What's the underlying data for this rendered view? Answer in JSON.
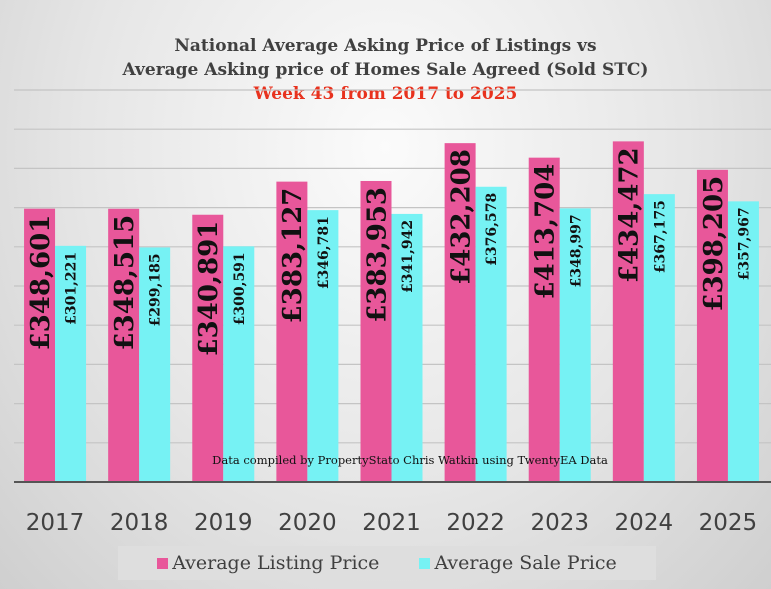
{
  "chart_data": {
    "type": "bar",
    "title": "National Average Asking Price of Listings vs",
    "title_line2": "Average Asking price of Homes Sale Agreed (Sold STC)",
    "subtitle": "Week 43 from 2017 to 2025",
    "annotation": "Data compiled by PropertyStato Chris Watkin using TwentyEA Data",
    "categories": [
      "2017",
      "2018",
      "2019",
      "2020",
      "2021",
      "2022",
      "2023",
      "2024",
      "2025"
    ],
    "series": [
      {
        "name": "Average Listing Price",
        "color": "#e8579a",
        "values": [
          348601,
          348515,
          340891,
          383127,
          383953,
          432208,
          413704,
          434472,
          398205
        ],
        "labels": [
          "£348,601",
          "£348,515",
          "£340,891",
          "£383,127",
          "£383,953",
          "£432,208",
          "£413,704",
          "£434,472",
          "£398,205"
        ]
      },
      {
        "name": "Average Sale Price",
        "color": "#76f2f4",
        "values": [
          301221,
          299185,
          300591,
          346781,
          341942,
          376578,
          348997,
          367175,
          357967
        ],
        "labels": [
          "£301,221",
          "£299,185",
          "£300,591",
          "£346,781",
          "£341,942",
          "£376,578",
          "£348,997",
          "£367,175",
          "£357,967"
        ]
      }
    ],
    "ylim": [
      0,
      500000
    ],
    "grid": true,
    "legend": "bottom"
  }
}
